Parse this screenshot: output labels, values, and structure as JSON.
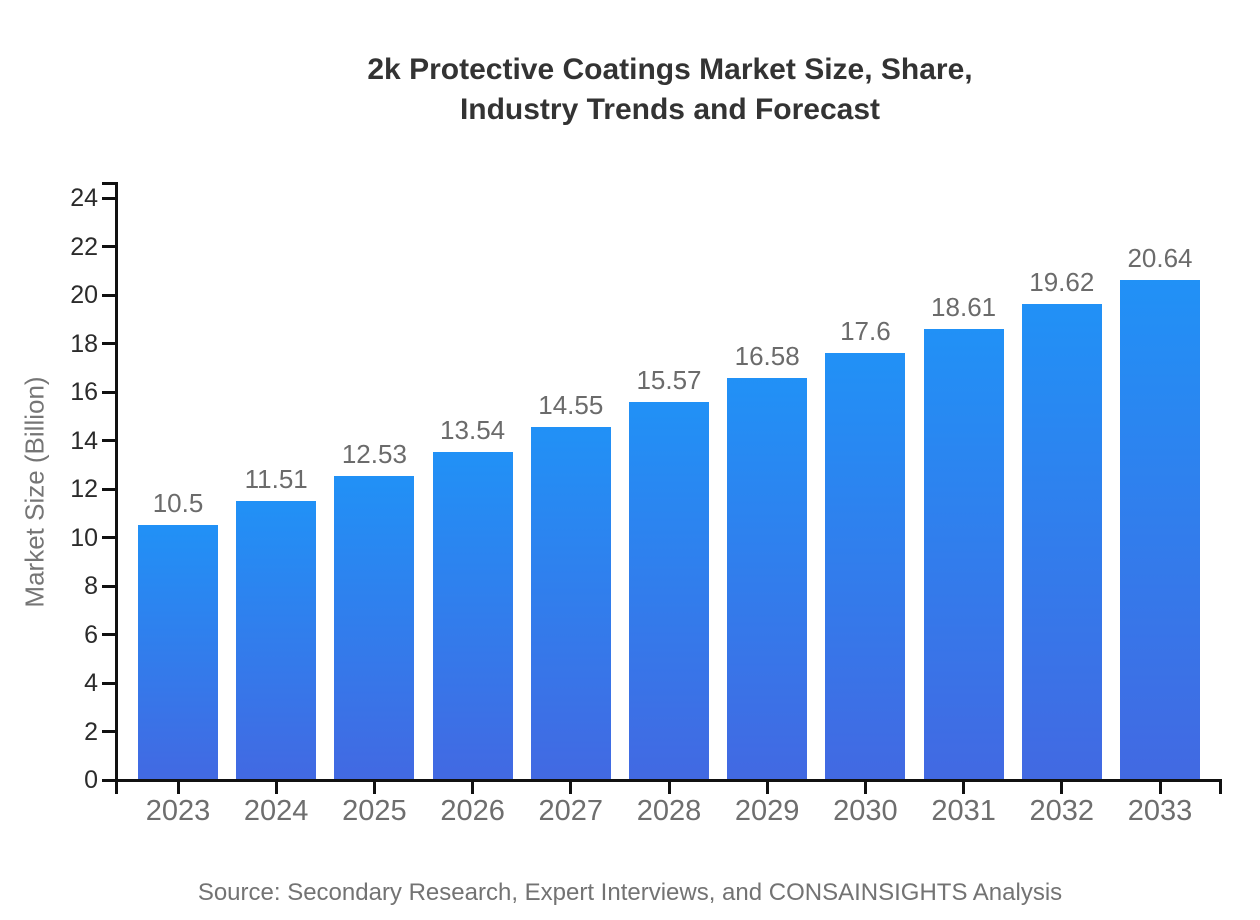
{
  "chart": {
    "title_line1": "2k Protective Coatings Market Size, Share,",
    "title_line2": "Industry Trends and Forecast",
    "y_axis_title": "Market Size (Billion)",
    "source": "Source: Secondary Research, Expert Interviews, and CONSAINSIGHTS Analysis"
  },
  "chart_data": {
    "type": "bar",
    "title": "2k Protective Coatings Market Size, Share, Industry Trends and Forecast",
    "categories": [
      "2023",
      "2024",
      "2025",
      "2026",
      "2027",
      "2028",
      "2029",
      "2030",
      "2031",
      "2032",
      "2033"
    ],
    "values": [
      10.5,
      11.51,
      12.53,
      13.54,
      14.55,
      15.57,
      16.58,
      17.6,
      18.61,
      19.62,
      20.64
    ],
    "value_labels": [
      "10.5",
      "11.51",
      "12.53",
      "13.54",
      "14.55",
      "15.57",
      "16.58",
      "17.6",
      "18.61",
      "19.62",
      "20.64"
    ],
    "xlabel": "",
    "ylabel": "Market Size (Billion)",
    "ylim": [
      0,
      24
    ],
    "ytick_step": 2,
    "yticks": [
      0,
      2,
      4,
      6,
      8,
      10,
      12,
      14,
      16,
      18,
      20,
      22,
      24
    ],
    "grid": false,
    "legend": "none",
    "bar_gradient_top": "#2191f6",
    "bar_gradient_bottom": "#4269e2",
    "axis_color": "#111111",
    "source": "Source: Secondary Research, Expert Interviews, and CONSAINSIGHTS Analysis"
  }
}
